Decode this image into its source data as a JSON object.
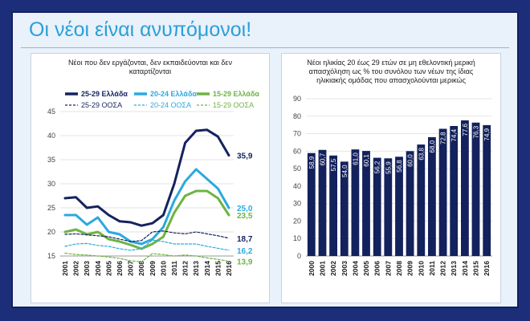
{
  "page": {
    "title": "Οι νέοι είναι ανυπόμονοι!"
  },
  "chart_data": [
    {
      "type": "line",
      "title": "Νέοι που δεν εργάζονται, δεν εκπαιδεύονται και δεν καταρτίζονται",
      "x": [
        "2001",
        "2002",
        "2003",
        "2004",
        "2005",
        "2006",
        "2007",
        "2008",
        "2009",
        "2010",
        "2011",
        "2012",
        "2013",
        "2014",
        "2015",
        "2016"
      ],
      "ylim": [
        15,
        45
      ],
      "yticks": [
        15,
        20,
        25,
        30,
        35,
        40,
        45
      ],
      "legend": "top",
      "series": [
        {
          "name": "25-29 Ελλάδα",
          "color": "#14235e",
          "style": "solid",
          "end_label": "35,9",
          "values": [
            27.0,
            27.2,
            25.0,
            25.3,
            23.5,
            22.2,
            22.0,
            21.3,
            21.8,
            23.5,
            30.0,
            38.5,
            41.0,
            41.2,
            39.8,
            35.9
          ]
        },
        {
          "name": "20-24 Ελλάδα",
          "color": "#2ba9df",
          "style": "solid",
          "end_label": "25,0",
          "values": [
            23.5,
            23.5,
            21.5,
            23.0,
            20.0,
            19.5,
            18.0,
            17.5,
            18.5,
            21.0,
            26.5,
            30.5,
            33.0,
            31.0,
            29.0,
            25.0
          ]
        },
        {
          "name": "15-29 Ελλάδα",
          "color": "#6fb344",
          "style": "solid",
          "end_label": "23,5",
          "values": [
            20.0,
            20.5,
            19.5,
            20.0,
            18.5,
            18.0,
            17.3,
            16.5,
            17.5,
            19.0,
            24.0,
            27.5,
            28.5,
            28.5,
            27.0,
            23.5
          ]
        },
        {
          "name": "25-29 ΟΟΣΑ",
          "color": "#14235e",
          "style": "dashed",
          "end_label": "18,7",
          "values": [
            19.5,
            19.6,
            19.4,
            19.2,
            19.0,
            18.5,
            18.0,
            18.2,
            20.0,
            20.2,
            19.8,
            19.6,
            20.0,
            19.6,
            19.2,
            18.7
          ]
        },
        {
          "name": "20-24 ΟΟΣΑ",
          "color": "#2ba9df",
          "style": "dashed",
          "end_label": "16,2",
          "values": [
            17.0,
            17.5,
            17.6,
            17.2,
            17.0,
            16.5,
            16.2,
            16.5,
            18.3,
            18.0,
            17.5,
            17.5,
            17.5,
            17.0,
            16.6,
            16.2
          ]
        },
        {
          "name": "15-29 ΟΟΣΑ",
          "color": "#6fb344",
          "style": "dashed",
          "end_label": "13,9",
          "values": [
            15.6,
            15.3,
            15.2,
            15.0,
            14.8,
            14.5,
            14.0,
            13.8,
            15.5,
            15.3,
            15.0,
            15.2,
            15.0,
            14.6,
            14.3,
            13.9
          ]
        }
      ]
    },
    {
      "type": "bar",
      "title": "Νέοι ηλικίας 20 έως 29 ετών σε μη εθελοντική μερική απασχόληση ως % του συνόλου των νέων της ίδιας ηλικιακής ομάδας που απασχολούνται μερικώς",
      "categories": [
        "2000",
        "2001",
        "2002",
        "2003",
        "2004",
        "2005",
        "2006",
        "2007",
        "2008",
        "2009",
        "2010",
        "2011",
        "2012",
        "2013",
        "2014",
        "2015",
        "2016"
      ],
      "values": [
        58.9,
        60.7,
        57.5,
        54.0,
        61.0,
        60.1,
        56.2,
        55.9,
        56.8,
        60.0,
        63.8,
        68.0,
        72.8,
        74.4,
        77.6,
        76.3,
        74.9
      ],
      "value_labels": [
        "58,9",
        "60,7",
        "57,5",
        "54,0",
        "61,0",
        "60,1",
        "56,2",
        "55,9",
        "56,8",
        "60,0",
        "63,8",
        "68,0",
        "72,8",
        "74,4",
        "77,6",
        "76,3",
        "74,9"
      ],
      "ylim": [
        0,
        90
      ],
      "yticks": [
        0,
        10,
        20,
        30,
        40,
        50,
        60,
        70,
        80,
        90
      ],
      "color": "#13215c"
    }
  ]
}
